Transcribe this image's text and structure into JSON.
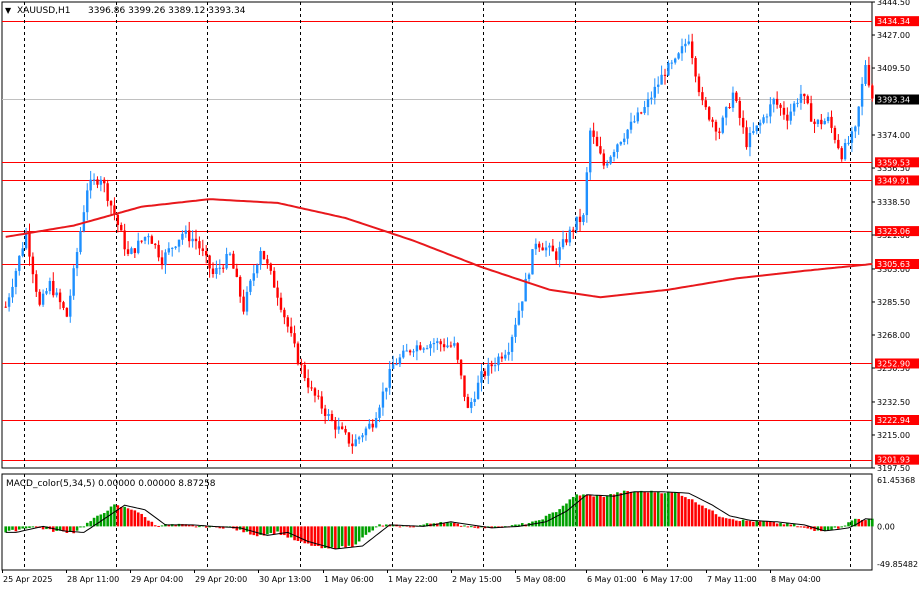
{
  "header": {
    "menu_glyph": "▼",
    "symbol": "XAUUSD,H1",
    "ohlc": "3396.86 3399.26 3389.12 3393.34"
  },
  "macd_header": "MACD_color(5,34,5) 0.00000 0.00000 8.87258",
  "colors": {
    "bull": "#1e90ff",
    "bear": "#ff0000",
    "ma": "#e8181c",
    "level": "#ff0000",
    "hist_up": "#00a000",
    "hist_down": "#ff0000",
    "text": "#000000",
    "grid": "#000000"
  },
  "chart_data": [
    {
      "type": "candlestick",
      "symbol": "XAUUSD",
      "timeframe": "H1",
      "current_price": "3393.34",
      "ylim": [
        3197.5,
        3444.5
      ],
      "price_ticks": [
        "3444.50",
        "3427.00",
        "3409.50",
        "3374.00",
        "3356.50",
        "3338.50",
        "3321.00",
        "3303.00",
        "3285.50",
        "3268.00",
        "3250.50",
        "3232.50",
        "3215.00",
        "3197.50"
      ],
      "price_levels": [
        {
          "label": "3434.34",
          "value": 3434.34
        },
        {
          "label": "3359.53",
          "value": 3359.53
        },
        {
          "label": "3349.91",
          "value": 3349.91
        },
        {
          "label": "3323.06",
          "value": 3323.06
        },
        {
          "label": "3305.63",
          "value": 3305.63
        },
        {
          "label": "3252.90",
          "value": 3252.9
        },
        {
          "label": "3222.94",
          "value": 3222.94
        },
        {
          "label": "3201.93",
          "value": 3201.93
        }
      ],
      "x_labels": [
        "25 Apr 2025",
        "28 Apr 11:00",
        "29 Apr 04:00",
        "29 Apr 20:00",
        "30 Apr 13:00",
        "1 May 06:00",
        "1 May 22:00",
        "2 May 15:00",
        "5 May 08:00",
        "6 May 01:00",
        "6 May 17:00",
        "7 May 11:00",
        "8 May 04:00"
      ],
      "close_anchors": [
        [
          0,
          3283
        ],
        [
          6,
          3322
        ],
        [
          10,
          3283
        ],
        [
          13,
          3295
        ],
        [
          18,
          3278
        ],
        [
          24,
          3346
        ],
        [
          28,
          3352
        ],
        [
          32,
          3332
        ],
        [
          36,
          3310
        ],
        [
          42,
          3322
        ],
        [
          46,
          3308
        ],
        [
          52,
          3322
        ],
        [
          56,
          3318
        ],
        [
          61,
          3300
        ],
        [
          66,
          3310
        ],
        [
          70,
          3282
        ],
        [
          75,
          3314
        ],
        [
          80,
          3290
        ],
        [
          86,
          3255
        ],
        [
          90,
          3238
        ],
        [
          96,
          3222
        ],
        [
          102,
          3210
        ],
        [
          108,
          3222
        ],
        [
          114,
          3252
        ],
        [
          120,
          3262
        ],
        [
          126,
          3264
        ],
        [
          132,
          3262
        ],
        [
          136,
          3228
        ],
        [
          140,
          3246
        ],
        [
          144,
          3254
        ],
        [
          148,
          3262
        ],
        [
          152,
          3288
        ],
        [
          156,
          3318
        ],
        [
          162,
          3310
        ],
        [
          168,
          3328
        ],
        [
          170,
          3330
        ],
        [
          172,
          3376
        ],
        [
          176,
          3358
        ],
        [
          180,
          3370
        ],
        [
          188,
          3388
        ],
        [
          194,
          3408
        ],
        [
          197,
          3412
        ],
        [
          201,
          3426
        ],
        [
          205,
          3390
        ],
        [
          210,
          3376
        ],
        [
          214,
          3396
        ],
        [
          218,
          3370
        ],
        [
          222,
          3380
        ],
        [
          226,
          3392
        ],
        [
          230,
          3384
        ],
        [
          234,
          3396
        ],
        [
          238,
          3380
        ],
        [
          242,
          3382
        ],
        [
          246,
          3364
        ],
        [
          250,
          3376
        ],
        [
          253,
          3412
        ],
        [
          255,
          3393.34
        ]
      ],
      "ma_series": {
        "period_note": "",
        "anchors": [
          [
            0,
            3320
          ],
          [
            20,
            3326
          ],
          [
            40,
            3336
          ],
          [
            60,
            3340
          ],
          [
            80,
            3338
          ],
          [
            100,
            3330
          ],
          [
            120,
            3318
          ],
          [
            140,
            3304
          ],
          [
            160,
            3292
          ],
          [
            175,
            3288
          ],
          [
            195,
            3292
          ],
          [
            215,
            3298
          ],
          [
            235,
            3302
          ],
          [
            255,
            3305.63
          ]
        ]
      },
      "macd": {
        "name": "MACD_color(5,34,5)",
        "ylim": [
          -49.85482,
          61.45368
        ],
        "ticks": [
          "61.45368",
          "0.00",
          "-49.85482"
        ],
        "hist_anchors": [
          [
            0,
            -8
          ],
          [
            8,
            0
          ],
          [
            14,
            -6
          ],
          [
            20,
            -8
          ],
          [
            26,
            10
          ],
          [
            32,
            28
          ],
          [
            38,
            22
          ],
          [
            44,
            2
          ],
          [
            52,
            2
          ],
          [
            58,
            0
          ],
          [
            66,
            -2
          ],
          [
            74,
            -12
          ],
          [
            80,
            -8
          ],
          [
            86,
            -20
          ],
          [
            94,
            -30
          ],
          [
            102,
            -26
          ],
          [
            110,
            2
          ],
          [
            120,
            0
          ],
          [
            128,
            6
          ],
          [
            134,
            2
          ],
          [
            140,
            -2
          ],
          [
            148,
            0
          ],
          [
            156,
            6
          ],
          [
            162,
            20
          ],
          [
            168,
            42
          ],
          [
            176,
            40
          ],
          [
            182,
            46
          ],
          [
            190,
            46
          ],
          [
            198,
            44
          ],
          [
            205,
            28
          ],
          [
            210,
            14
          ],
          [
            216,
            8
          ],
          [
            224,
            6
          ],
          [
            232,
            2
          ],
          [
            238,
            -6
          ],
          [
            242,
            -4
          ],
          [
            245,
            -2
          ],
          [
            247,
            2
          ],
          [
            250,
            10
          ],
          [
            255,
            8.87258
          ]
        ]
      }
    }
  ]
}
